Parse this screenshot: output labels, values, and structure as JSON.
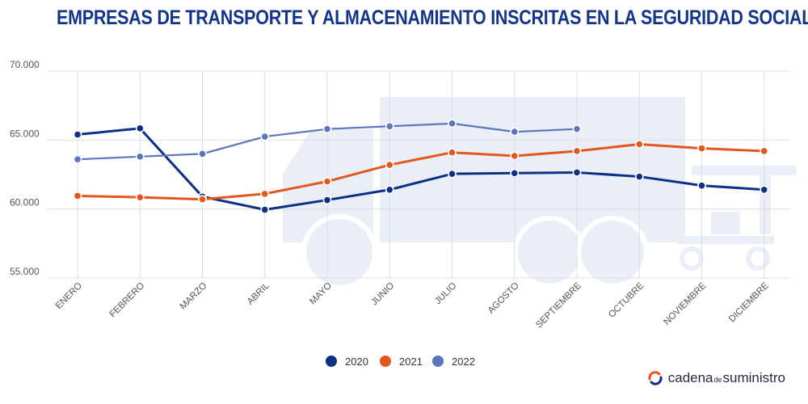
{
  "chart_data": {
    "type": "line",
    "title": "EMPRESAS DE TRANSPORTE Y ALMACENAMIENTO INSCRITAS EN LA SEGURIDAD SOCIAL",
    "categories": [
      "ENERO",
      "FEBRERO",
      "MARZO",
      "ABRIL",
      "MAYO",
      "JUNIO",
      "JULIO",
      "AGOSTO",
      "SEPTIEMBRE",
      "OCTUBRE",
      "NOVIEMBRE",
      "DICIEMBRE"
    ],
    "y_ticks": [
      "70.000",
      "65.000",
      "60.000",
      "55.000"
    ],
    "ylim": [
      55000,
      70000
    ],
    "grid": true,
    "legend_position": "bottom",
    "series": [
      {
        "name": "2020",
        "color": "#0d2f86",
        "values": [
          65400,
          65850,
          60900,
          59950,
          60650,
          61400,
          62550,
          62600,
          62650,
          62350,
          61700,
          61400
        ]
      },
      {
        "name": "2021",
        "color": "#e4571c",
        "values": [
          60950,
          60850,
          60700,
          61100,
          62000,
          63200,
          64100,
          63850,
          64200,
          64700,
          64400,
          64200
        ]
      },
      {
        "name": "2022",
        "color": "#5a77bd",
        "values": [
          63600,
          63800,
          64000,
          65250,
          65800,
          66000,
          66200,
          65600,
          65800,
          null,
          null,
          null
        ]
      }
    ]
  },
  "brand": {
    "part1": "cadena",
    "part2": "de",
    "part3": "suministro"
  },
  "colors": {
    "title": "#12358a",
    "grid": "#dddddd",
    "watermark": "#e9eef7"
  },
  "icons": {
    "watermark": "truck-icon",
    "logo": "brand-arc-icon"
  }
}
